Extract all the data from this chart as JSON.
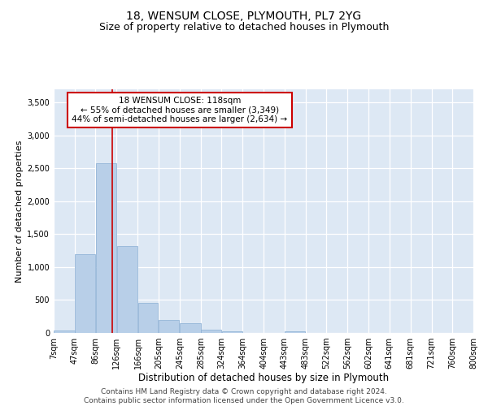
{
  "title": "18, WENSUM CLOSE, PLYMOUTH, PL7 2YG",
  "subtitle": "Size of property relative to detached houses in Plymouth",
  "xlabel": "Distribution of detached houses by size in Plymouth",
  "ylabel": "Number of detached properties",
  "bar_color": "#b8cfe8",
  "bar_edge_color": "#8aafd4",
  "bg_color": "#dde8f4",
  "annotation_box_color": "#ffffff",
  "annotation_box_edge": "#cc0000",
  "vline_color": "#cc0000",
  "vline_x": 118,
  "annotation_text": "18 WENSUM CLOSE: 118sqm\n← 55% of detached houses are smaller (3,349)\n44% of semi-detached houses are larger (2,634) →",
  "bins": [
    7,
    47,
    86,
    126,
    166,
    205,
    245,
    285,
    324,
    364,
    404,
    443,
    483,
    522,
    562,
    602,
    641,
    681,
    721,
    760,
    800
  ],
  "values": [
    40,
    1200,
    2580,
    1320,
    460,
    200,
    150,
    45,
    25,
    5,
    0,
    25,
    0,
    0,
    0,
    0,
    0,
    0,
    0,
    0
  ],
  "ylim": [
    0,
    3700
  ],
  "yticks": [
    0,
    500,
    1000,
    1500,
    2000,
    2500,
    3000,
    3500
  ],
  "footer": "Contains HM Land Registry data © Crown copyright and database right 2024.\nContains public sector information licensed under the Open Government Licence v3.0.",
  "title_fontsize": 10,
  "subtitle_fontsize": 9,
  "xlabel_fontsize": 8.5,
  "ylabel_fontsize": 8,
  "tick_fontsize": 7,
  "footer_fontsize": 6.5,
  "annot_fontsize": 7.5
}
